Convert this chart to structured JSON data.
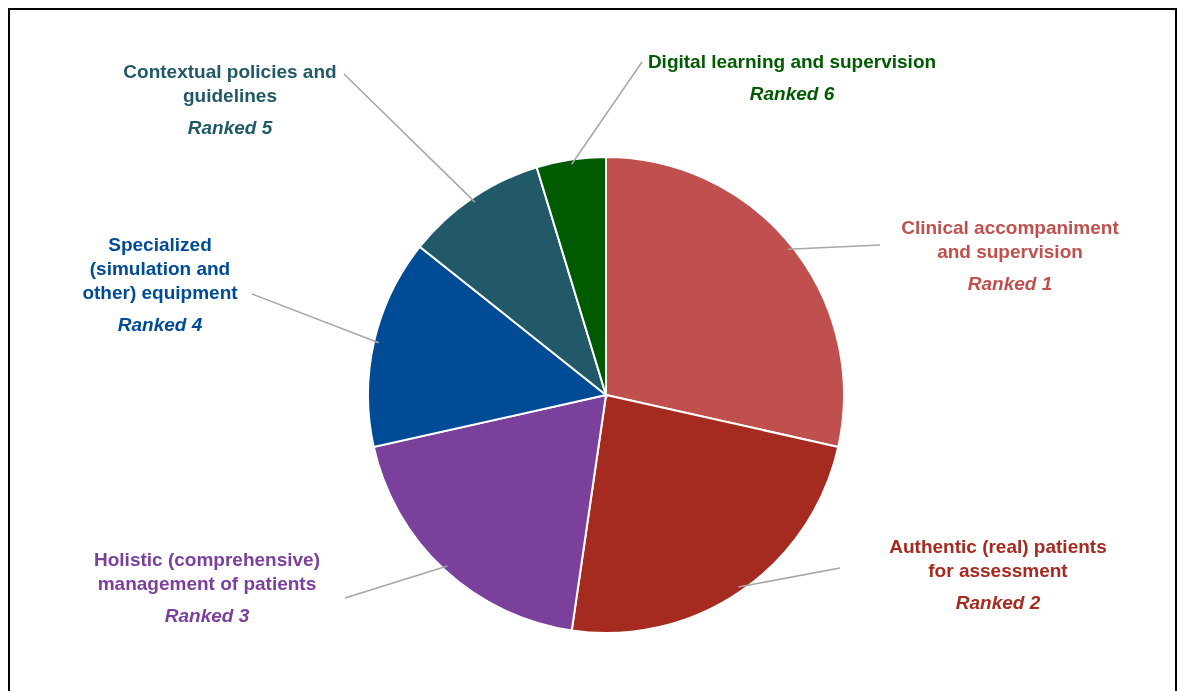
{
  "chart_data": {
    "type": "pie",
    "categories": [
      "Clinical accompaniment and supervision",
      "Authentic (real) patients for assessment",
      "Holistic (comprehensive) management of patients",
      "Specialized (simulation and other) equipment",
      "Contextual policies and guidelines",
      "Digital learning and supervision"
    ],
    "values": [
      28.5,
      23.8,
      19.2,
      14.2,
      9.6,
      4.7
    ],
    "colors": [
      "#c0504d",
      "#a52a1f",
      "#7b3f9c",
      "#004b96",
      "#215968",
      "#005a00"
    ],
    "annotations": [
      "Ranked 1",
      "Ranked 2",
      "Ranked 3",
      "Ranked 4",
      "Ranked 5",
      "Ranked 6"
    ],
    "legend": false
  }
}
